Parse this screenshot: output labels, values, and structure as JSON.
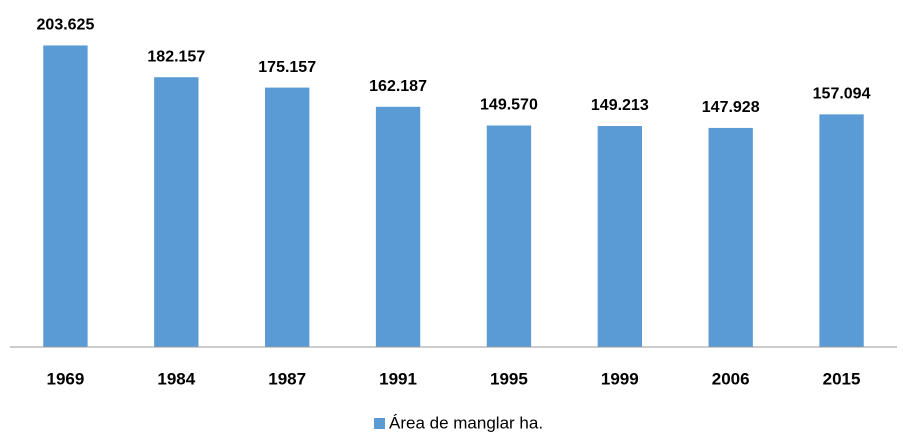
{
  "chart_data": {
    "type": "bar",
    "categories": [
      "1969",
      "1984",
      "1987",
      "1991",
      "1995",
      "1999",
      "2006",
      "2015"
    ],
    "series": [
      {
        "name": "Área de manglar ha.",
        "color": "#5b9bd5",
        "values": [
          203625,
          182157,
          175157,
          162187,
          149570,
          149213,
          147928,
          157094
        ],
        "value_labels": [
          "203.625",
          "182.157",
          "175.157",
          "162.187",
          "149.570",
          "149.213",
          "147.928",
          "157.094"
        ]
      }
    ],
    "ylim": [
      0,
      210000
    ],
    "legend": "bottom"
  }
}
